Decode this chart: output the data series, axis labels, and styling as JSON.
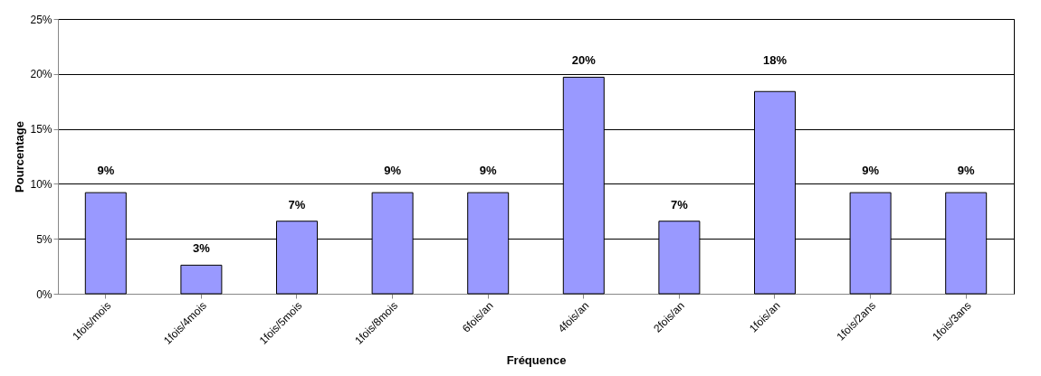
{
  "chart_data": {
    "type": "bar",
    "xlabel": "Fréquence",
    "ylabel": "Pourcentage",
    "categories": [
      "1fois/mois",
      "1fois/4mois",
      "1fois/5mois",
      "1fois/8mois",
      "6fois/an",
      "4fois/an",
      "2fois/an",
      "1fois/an",
      "1fois/2ans",
      "1fois/3ans"
    ],
    "values": [
      9.2,
      2.6,
      6.6,
      9.2,
      9.2,
      19.7,
      6.6,
      18.4,
      9.2,
      9.2
    ],
    "value_labels": [
      "9%",
      "3%",
      "7%",
      "9%",
      "9%",
      "20%",
      "7%",
      "18%",
      "9%",
      "9%"
    ],
    "color": "#9999ff",
    "ylim": [
      0,
      25
    ],
    "yticks": [
      {
        "value": 0,
        "label": "0%"
      },
      {
        "value": 5,
        "label": "5%"
      },
      {
        "value": 10,
        "label": "10%"
      },
      {
        "value": 15,
        "label": "15%"
      },
      {
        "value": 20,
        "label": "20%"
      },
      {
        "value": 25,
        "label": "25%"
      }
    ],
    "grid": "y"
  }
}
